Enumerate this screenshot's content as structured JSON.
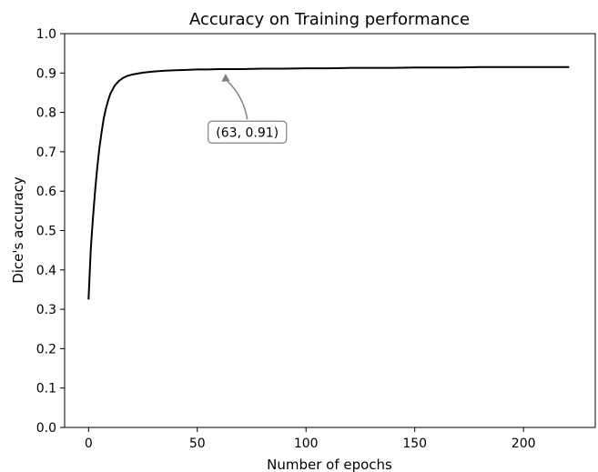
{
  "chart_data": {
    "type": "line",
    "title": "Accuracy on Training performance",
    "xlabel": "Number of epochs",
    "ylabel": "Dice's accuracy",
    "xlim": [
      -11,
      233
    ],
    "ylim": [
      0.0,
      1.0
    ],
    "xticks": [
      0,
      50,
      100,
      150,
      200
    ],
    "yticks": [
      0.0,
      0.1,
      0.2,
      0.3,
      0.4,
      0.5,
      0.6,
      0.7,
      0.8,
      0.9,
      1.0
    ],
    "grid": false,
    "series": [
      {
        "color": "#000000",
        "x": [
          0,
          1,
          2,
          3,
          4,
          5,
          6,
          7,
          8,
          9,
          10,
          12,
          14,
          16,
          18,
          20,
          25,
          30,
          35,
          40,
          45,
          50,
          55,
          60,
          63,
          70,
          80,
          90,
          100,
          110,
          120,
          130,
          140,
          150,
          160,
          170,
          180,
          190,
          200,
          210,
          221
        ],
        "y": [
          0.325,
          0.45,
          0.53,
          0.6,
          0.66,
          0.71,
          0.75,
          0.785,
          0.81,
          0.83,
          0.847,
          0.868,
          0.88,
          0.888,
          0.893,
          0.896,
          0.901,
          0.904,
          0.906,
          0.907,
          0.908,
          0.909,
          0.909,
          0.91,
          0.91,
          0.91,
          0.911,
          0.911,
          0.912,
          0.912,
          0.913,
          0.913,
          0.913,
          0.914,
          0.914,
          0.914,
          0.915,
          0.915,
          0.915,
          0.915,
          0.915
        ]
      }
    ],
    "annotation": {
      "text": "(63, 0.91)",
      "x": 63,
      "y": 0.91,
      "text_x": 73,
      "text_y": 0.75,
      "color": "#808080"
    }
  }
}
